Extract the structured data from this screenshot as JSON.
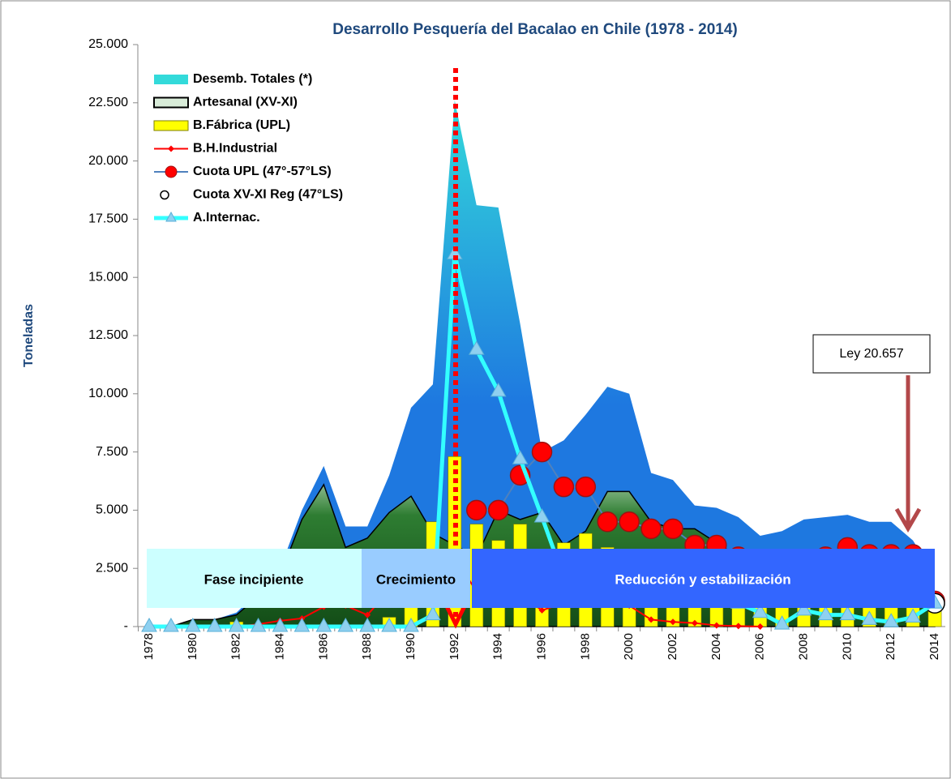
{
  "chart_data": {
    "type": "combo",
    "title": "Desarrollo Pesquería del Bacalao en Chile (1978 - 2014)",
    "y_label": "Toneladas",
    "categories": [
      "1978",
      null,
      "1980",
      null,
      "1982",
      null,
      "1984",
      null,
      "1986",
      null,
      "1988",
      null,
      "1990",
      null,
      "1992",
      null,
      "1994",
      null,
      "1996",
      null,
      "1998",
      null,
      "2000",
      null,
      "2002",
      null,
      "2004",
      null,
      "2006",
      null,
      "2008",
      null,
      "2010",
      null,
      "2012",
      null,
      "2014"
    ],
    "ylim": [
      0,
      25000
    ],
    "yticks": [
      {
        "value": 0,
        "label": "-"
      },
      {
        "value": 2500,
        "label": "2.500"
      },
      {
        "value": 5000,
        "label": "5.000"
      },
      {
        "value": 7500,
        "label": "7.500"
      },
      {
        "value": 10000,
        "label": "10.000"
      },
      {
        "value": 12500,
        "label": "12.500"
      },
      {
        "value": 15000,
        "label": "15.000"
      },
      {
        "value": 17500,
        "label": "17.500"
      },
      {
        "value": 20000,
        "label": "20.000"
      },
      {
        "value": 22500,
        "label": "22.500"
      },
      {
        "value": 25000,
        "label": "25.000"
      }
    ],
    "series": [
      {
        "name": "Desemb. Totales (*)",
        "type": "area",
        "color": "#1e88e5",
        "values": [
          0,
          0,
          300,
          300,
          600,
          1500,
          2500,
          5000,
          6900,
          4300,
          4300,
          6500,
          9400,
          10400,
          22600,
          18100,
          18000,
          13000,
          7500,
          8000,
          9100,
          10300,
          10000,
          6600,
          6300,
          5200,
          5100,
          4700,
          3900,
          4100,
          4600,
          4700,
          4800,
          4500,
          4500,
          3700,
          2200
        ]
      },
      {
        "name": "Artesanal (XV-XI)",
        "type": "area",
        "color": "#2e7d32",
        "values": [
          0,
          0,
          300,
          300,
          500,
          1300,
          2200,
          4600,
          6100,
          3400,
          3800,
          4900,
          5600,
          4000,
          3500,
          3000,
          5000,
          4600,
          4900,
          3500,
          4100,
          5800,
          5800,
          4500,
          4200,
          4200,
          3600,
          3000,
          2000,
          1900,
          2000,
          2000,
          1600,
          2200,
          2000,
          1800,
          1200
        ]
      },
      {
        "name": "B.Fábrica (UPL)",
        "type": "bar",
        "color": "#ffff00",
        "values": [
          0,
          0,
          0,
          0,
          200,
          0,
          0,
          0,
          0,
          0,
          0,
          400,
          1200,
          4500,
          7300,
          4400,
          3700,
          4400,
          1300,
          3600,
          4000,
          3400,
          3300,
          2300,
          1900,
          900,
          1400,
          1900,
          2000,
          2400,
          2600,
          2800,
          3200,
          2300,
          2400,
          2100,
          1100
        ]
      },
      {
        "name": "B.H.Industrial",
        "type": "line",
        "marker": "diamond",
        "color": "#ff0000",
        "values": [
          0,
          0,
          0,
          0,
          0,
          100,
          250,
          350,
          850,
          900,
          500,
          1550,
          2550,
          2000,
          3000,
          1500,
          1800,
          1350,
          700,
          1000,
          1000,
          1100,
          900,
          300,
          200,
          150,
          50,
          20,
          0,
          null,
          null,
          null,
          null,
          null,
          null,
          null,
          null
        ]
      },
      {
        "name": "Cuota UPL (47°-57°LS)",
        "type": "line",
        "marker": "circle",
        "color": "#ff0000",
        "line_color": "#4f81bd",
        "values": [
          null,
          null,
          null,
          null,
          null,
          null,
          null,
          null,
          null,
          null,
          null,
          null,
          null,
          null,
          null,
          5000,
          5000,
          6500,
          7500,
          6000,
          6000,
          4500,
          4500,
          4200,
          4200,
          3500,
          3500,
          3000,
          2700,
          2700,
          2900,
          3000,
          3400,
          3100,
          3100,
          3100,
          1100
        ]
      },
      {
        "name": "Cuota XV-XI Reg (47°LS)",
        "type": "scatter",
        "marker": "circle",
        "color": "#ffffff",
        "values": [
          null,
          null,
          null,
          null,
          null,
          null,
          null,
          null,
          null,
          null,
          null,
          null,
          null,
          null,
          null,
          null,
          null,
          null,
          null,
          null,
          null,
          null,
          null,
          null,
          null,
          null,
          null,
          null,
          2700,
          null,
          null,
          null,
          null,
          null,
          null,
          1400,
          1000
        ]
      },
      {
        "name": "A.Internac.",
        "type": "line",
        "marker": "triangle",
        "color": "#33ffff",
        "values": [
          0,
          0,
          0,
          0,
          0,
          0,
          0,
          0,
          0,
          0,
          0,
          0,
          0,
          500,
          16000,
          11900,
          10100,
          7200,
          4700,
          2100,
          1400,
          2200,
          2300,
          1300,
          1800,
          2400,
          1400,
          1000,
          600,
          100,
          700,
          500,
          500,
          300,
          200,
          400,
          1000
        ]
      }
    ],
    "annotations": [
      "Ley  20.657"
    ],
    "phases": [
      "Fase incipiente",
      "Crecimiento",
      "Reducción y estabilización"
    ]
  }
}
